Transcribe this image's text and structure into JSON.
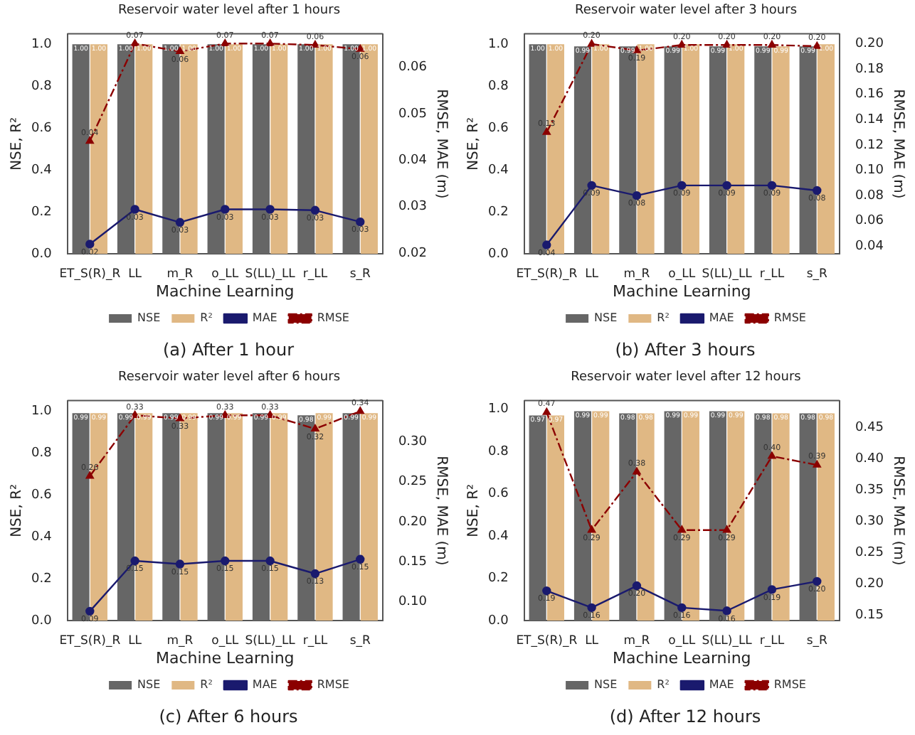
{
  "chart_data": [
    {
      "type": "bar",
      "title": "Reservoir water level after 1 hours",
      "xlabel": "Machine Learning",
      "ylabel": "NSE, R²",
      "y2label": "RMSE, MAE (m)",
      "annotations": [
        "(a)  After 1 hour"
      ],
      "legend": "bottom",
      "categories": [
        "ET_S(R)_R",
        "LL",
        "m_R",
        "o_LL",
        "S(LL)_LL",
        "r_LL",
        "s_R"
      ],
      "ylim": [
        0,
        1.05
      ],
      "yticks": [
        {
          "value": 0,
          "label": "0.0"
        },
        {
          "value": 0.2,
          "label": "0.2"
        },
        {
          "value": 0.4,
          "label": "0.4"
        },
        {
          "value": 0.6,
          "label": "0.6"
        },
        {
          "value": 0.8,
          "label": "0.8"
        },
        {
          "value": 1,
          "label": "1.0"
        }
      ],
      "y2lim": [
        0.0198,
        0.0672
      ],
      "y2ticks": [
        0.02,
        0.03,
        0.04,
        0.05,
        0.06
      ],
      "series": [
        {
          "name": "NSE",
          "color": "#666666",
          "values": [
            1,
            1,
            1,
            1,
            1,
            1,
            1
          ],
          "value_labels": [
            "1.00",
            "1.00",
            "1.00",
            "1.00",
            "1.00",
            "1.00",
            "1.00"
          ]
        },
        {
          "name": "R²",
          "color": "#e0b884",
          "values": [
            1,
            1,
            1,
            1,
            1,
            1,
            1
          ],
          "value_labels": [
            "1.00",
            "1.00",
            "1.00",
            "1.00",
            "1.00",
            "1.00",
            "1.00"
          ]
        },
        {
          "name": "MAE",
          "type": "line",
          "axis": "y2",
          "color": "#1a1a6e",
          "marker": "circle",
          "line_style": "solid",
          "values": [
            0.0219,
            0.0294,
            0.0266,
            0.0294,
            0.0294,
            0.0292,
            0.0267
          ],
          "value_labels": [
            "0.02",
            "0.03",
            "0.03",
            "0.03",
            "0.03",
            "0.03",
            "0.03"
          ]
        },
        {
          "name": "RMSE",
          "type": "line",
          "axis": "y2",
          "color": "#8b0000",
          "marker": "triangle",
          "line_style": "dashed",
          "values": [
            0.0441,
            0.0651,
            0.0634,
            0.0651,
            0.0651,
            0.0648,
            0.0639
          ],
          "value_labels": [
            "0.04",
            "0.07",
            "0.06",
            "0.07",
            "0.07",
            "0.06",
            "0.06"
          ]
        }
      ]
    },
    {
      "type": "bar",
      "title": "Reservoir water level after 3 hours",
      "xlabel": "Machine Learning",
      "ylabel": "NSE, R²",
      "y2label": "RMSE, MAE (m)",
      "annotations": [
        "(b)  After 3 hours"
      ],
      "legend": "bottom",
      "categories": [
        "ET_S(R)_R",
        "LL",
        "m_R",
        "o_LL",
        "S(LL)_LL",
        "r_LL",
        "s_R"
      ],
      "ylim": [
        0,
        1.05
      ],
      "yticks": [
        {
          "value": 0,
          "label": "0.0"
        },
        {
          "value": 0.2,
          "label": "0.2"
        },
        {
          "value": 0.4,
          "label": "0.4"
        },
        {
          "value": 0.6,
          "label": "0.6"
        },
        {
          "value": 0.8,
          "label": "0.8"
        },
        {
          "value": 1,
          "label": "1.0"
        }
      ],
      "y2lim": [
        0.0339,
        0.2078
      ],
      "y2ticks": [
        0.04,
        0.06,
        0.08,
        {
          "value": 0.1,
          "label": "0.10"
        },
        0.12,
        0.14,
        0.16,
        0.18,
        {
          "value": 0.2,
          "label": "0.20"
        }
      ],
      "series": [
        {
          "name": "NSE",
          "color": "#666666",
          "values": [
            1,
            0.99,
            0.99,
            0.99,
            0.99,
            0.99,
            0.99
          ],
          "value_labels": [
            "1.00",
            "0.99",
            "0.99",
            "0.99",
            "0.99",
            "0.99",
            "0.99"
          ]
        },
        {
          "name": "R²",
          "color": "#e0b884",
          "values": [
            1,
            1,
            1,
            1,
            1,
            0.99,
            1
          ],
          "value_labels": [
            "1.00",
            "1.00",
            "1.00",
            "1.00",
            "1.00",
            "0.99",
            "1.00"
          ]
        },
        {
          "name": "MAE",
          "type": "line",
          "axis": "y2",
          "color": "#1a1a6e",
          "marker": "circle",
          "line_style": "solid",
          "values": [
            0.041,
            0.088,
            0.08,
            0.088,
            0.088,
            0.088,
            0.084
          ],
          "value_labels": [
            "0.04",
            "0.09",
            "0.08",
            "0.09",
            "0.09",
            "0.09",
            "0.08"
          ]
        },
        {
          "name": "RMSE",
          "type": "line",
          "axis": "y2",
          "color": "#8b0000",
          "marker": "triangle",
          "line_style": "dashed",
          "values": [
            0.13,
            0.1997,
            0.1946,
            0.199,
            0.199,
            0.199,
            0.198
          ],
          "value_labels": [
            "0.13",
            "0.20",
            "0.19",
            "0.20",
            "0.20",
            "0.20",
            "0.20"
          ]
        }
      ]
    },
    {
      "type": "bar",
      "title": "Reservoir water level after 6 hours",
      "xlabel": "Machine Learning",
      "ylabel": "NSE, R²",
      "y2label": "RMSE, MAE (m)",
      "annotations": [
        "(c)  After 6 hours"
      ],
      "legend": "bottom",
      "categories": [
        "ET_S(R)_R",
        "LL",
        "m_R",
        "o_LL",
        "S(LL)_LL",
        "r_LL",
        "s_R"
      ],
      "ylim": [
        0,
        1.05
      ],
      "yticks": [
        {
          "value": 0,
          "label": "0.0"
        },
        {
          "value": 0.2,
          "label": "0.2"
        },
        {
          "value": 0.4,
          "label": "0.4"
        },
        {
          "value": 0.6,
          "label": "0.6"
        },
        {
          "value": 0.8,
          "label": "0.8"
        },
        {
          "value": 1,
          "label": "1.0"
        }
      ],
      "y2lim": [
        0.0762,
        0.3513
      ],
      "y2ticks": [
        {
          "value": 0.1,
          "label": "0.10"
        },
        0.15,
        {
          "value": 0.2,
          "label": "0.20"
        },
        0.25,
        {
          "value": 0.3,
          "label": "0.30"
        }
      ],
      "series": [
        {
          "name": "NSE",
          "color": "#666666",
          "values": [
            0.99,
            0.99,
            0.99,
            0.99,
            0.99,
            0.98,
            0.99
          ],
          "value_labels": [
            "0.99",
            "0.99",
            "0.99",
            "0.99",
            "0.99",
            "0.98",
            "0.99"
          ]
        },
        {
          "name": "R²",
          "color": "#e0b884",
          "values": [
            0.99,
            0.99,
            0.99,
            0.99,
            0.99,
            0.99,
            0.99
          ],
          "value_labels": [
            "0.99",
            "0.99",
            "0.99",
            "0.99",
            "0.99",
            "0.99",
            "0.99"
          ]
        },
        {
          "name": "MAE",
          "type": "line",
          "axis": "y2",
          "color": "#1a1a6e",
          "marker": "circle",
          "line_style": "solid",
          "values": [
            0.088,
            0.151,
            0.147,
            0.151,
            0.151,
            0.135,
            0.153
          ],
          "value_labels": [
            "0.09",
            "0.15",
            "0.15",
            "0.15",
            "0.15",
            "0.13",
            "0.15"
          ]
        },
        {
          "name": "RMSE",
          "type": "line",
          "axis": "y2",
          "color": "#8b0000",
          "marker": "triangle",
          "line_style": "dashed",
          "values": [
            0.257,
            0.333,
            0.329,
            0.333,
            0.333,
            0.316,
            0.338
          ],
          "value_labels": [
            "0.26",
            "0.33",
            "0.33",
            "0.33",
            "0.33",
            "0.32",
            "0.34"
          ]
        }
      ]
    },
    {
      "type": "bar",
      "title": "Reservoir water level after 12 hours",
      "xlabel": "Machine Learning",
      "ylabel": "NSE, R²",
      "y2label": "RMSE, MAE (m)",
      "annotations": [
        "(d)  After 12 hours"
      ],
      "legend": "bottom",
      "categories": [
        "ET_S(R)_R",
        "LL",
        "m_R",
        "o_LL",
        "S(LL)_LL",
        "r_LL",
        "s_R"
      ],
      "ylim": [
        0,
        1.04
      ],
      "yticks": [
        {
          "value": 0,
          "label": "0.0"
        },
        {
          "value": 0.2,
          "label": "0.2"
        },
        {
          "value": 0.4,
          "label": "0.4"
        },
        {
          "value": 0.6,
          "label": "0.6"
        },
        {
          "value": 0.8,
          "label": "0.8"
        },
        {
          "value": 1,
          "label": "1.0"
        }
      ],
      "y2lim": [
        0.1412,
        0.4928
      ],
      "y2ticks": [
        0.15,
        {
          "value": 0.2,
          "label": "0.20"
        },
        0.25,
        {
          "value": 0.3,
          "label": "0.30"
        },
        0.35,
        {
          "value": 0.4,
          "label": "0.40"
        },
        0.45
      ],
      "series": [
        {
          "name": "NSE",
          "color": "#666666",
          "values": [
            0.97,
            0.99,
            0.98,
            0.99,
            0.99,
            0.98,
            0.98
          ],
          "value_labels": [
            "0.97",
            "0.99",
            "0.98",
            "0.99",
            "0.99",
            "0.98",
            "0.98"
          ]
        },
        {
          "name": "R²",
          "color": "#e0b884",
          "values": [
            0.97,
            0.99,
            0.98,
            0.99,
            0.99,
            0.98,
            0.98
          ],
          "value_labels": [
            "0.97",
            "0.99",
            "0.98",
            "0.99",
            "0.99",
            "0.98",
            "0.98"
          ]
        },
        {
          "name": "MAE",
          "type": "line",
          "axis": "y2",
          "color": "#1a1a6e",
          "marker": "circle",
          "line_style": "solid",
          "values": [
            0.189,
            0.162,
            0.197,
            0.162,
            0.157,
            0.191,
            0.204
          ],
          "value_labels": [
            "0.19",
            "0.16",
            "0.20",
            "0.16",
            "0.16",
            "0.19",
            "0.20"
          ]
        },
        {
          "name": "RMSE",
          "type": "line",
          "axis": "y2",
          "color": "#8b0000",
          "marker": "triangle",
          "line_style": "dashed",
          "values": [
            0.474,
            0.286,
            0.379,
            0.286,
            0.286,
            0.404,
            0.39
          ],
          "value_labels": [
            "0.47",
            "0.29",
            "0.38",
            "0.29",
            "0.29",
            "0.40",
            "0.39"
          ]
        }
      ]
    }
  ]
}
